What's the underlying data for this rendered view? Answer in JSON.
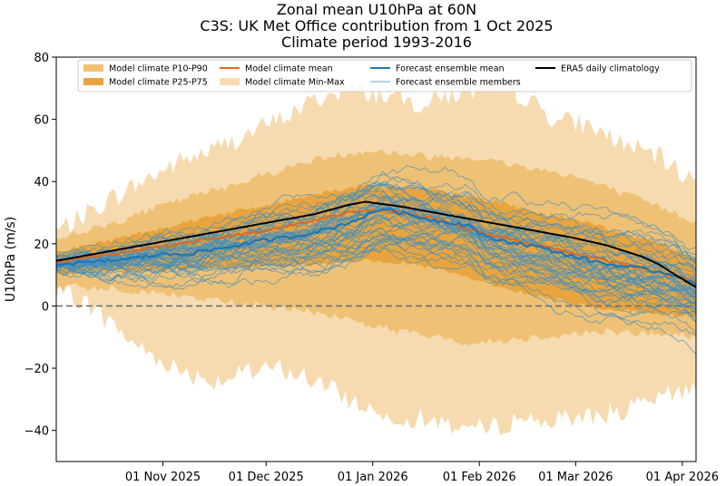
{
  "chart_data": {
    "type": "line",
    "title_lines": [
      "Zonal mean U10hPa at 60N",
      "C3S: UK Met Office contribution from 1 Oct 2025",
      "Climate period 1993-2016"
    ],
    "xlabel": "",
    "ylabel": "U10hPa (m/s)",
    "x_start_day": 0,
    "x_end_day": 186,
    "ylim": [
      -50,
      80
    ],
    "yticks": [
      -40,
      -20,
      0,
      20,
      40,
      60,
      80
    ],
    "xticks": [
      {
        "day": 31,
        "label": "01 Nov 2025"
      },
      {
        "day": 61,
        "label": "01 Dec 2025"
      },
      {
        "day": 92,
        "label": "01 Jan 2026"
      },
      {
        "day": 123,
        "label": "01 Feb 2026"
      },
      {
        "day": 151,
        "label": "01 Mar 2026"
      },
      {
        "day": 182,
        "label": "01 Apr 2026"
      }
    ],
    "zero_line": 0,
    "legend": [
      {
        "label": "Model climate P10-P90",
        "kind": "patch",
        "color": "#efc175"
      },
      {
        "label": "Model climate P25-P75",
        "kind": "patch",
        "color": "#e8a53f"
      },
      {
        "label": "Model climate mean",
        "kind": "line",
        "color": "#e0691b"
      },
      {
        "label": "Model climate Min-Max",
        "kind": "patch",
        "color": "#f6dbb0"
      },
      {
        "label": "Forecast ensemble mean",
        "kind": "line",
        "color": "#1f77b4"
      },
      {
        "label": "Forecast ensemble members",
        "kind": "thinline",
        "color": "#6aa5cc"
      },
      {
        "label": "ERA5 daily climatology",
        "kind": "line",
        "color": "#000000"
      }
    ],
    "colors": {
      "minmax": "#f6dbb0",
      "p10p90": "#efc175",
      "p25p75": "#e8a53f",
      "model_mean": "#e0691b",
      "ens_mean": "#1f77b4",
      "ens_member": "#3f8fc2",
      "era5": "#000000",
      "zero": "#707070"
    },
    "series": [
      {
        "name": "ERA5 daily climatology",
        "x": [
          0,
          15,
          30,
          45,
          60,
          75,
          85,
          90,
          100,
          110,
          120,
          130,
          140,
          150,
          160,
          170,
          175,
          180,
          186
        ],
        "y": [
          14.5,
          17.5,
          20.5,
          23.5,
          26.5,
          29.5,
          32.5,
          33.5,
          32,
          30,
          28,
          26,
          24,
          22,
          19.5,
          16,
          13.5,
          10,
          6
        ]
      },
      {
        "name": "Model climate mean",
        "x": [
          0,
          15,
          30,
          45,
          60,
          75,
          85,
          90,
          100,
          110,
          120,
          130,
          140,
          150,
          160,
          170,
          180,
          186
        ],
        "y": [
          14,
          16.5,
          19,
          21.5,
          24,
          27.5,
          30,
          31,
          30,
          28,
          24.5,
          22,
          19.5,
          17,
          14.5,
          12,
          9.5,
          7.5
        ]
      },
      {
        "name": "Forecast ensemble mean",
        "x": [
          0,
          10,
          20,
          30,
          40,
          50,
          60,
          70,
          80,
          88,
          95,
          100,
          110,
          120,
          125,
          130,
          140,
          150,
          160,
          170,
          180,
          186
        ],
        "y": [
          13.5,
          14,
          15,
          16.5,
          17,
          19,
          21,
          22.5,
          25,
          28,
          31.5,
          30,
          27.5,
          26,
          22,
          21,
          19,
          16,
          13.5,
          12,
          10,
          6.5
        ]
      },
      {
        "name": "Model climate P25-P75 lower",
        "x": [
          0,
          15,
          30,
          45,
          60,
          75,
          85,
          90,
          100,
          110,
          120,
          130,
          140,
          150,
          160,
          170,
          180,
          186
        ],
        "y": [
          10,
          11,
          11.5,
          12,
          12.5,
          13,
          14,
          15,
          14,
          12,
          9,
          6,
          3,
          1,
          -1,
          -2,
          -3,
          -3.5
        ]
      },
      {
        "name": "Model climate P25-P75 upper",
        "x": [
          0,
          15,
          30,
          45,
          60,
          75,
          85,
          90,
          100,
          110,
          120,
          130,
          140,
          150,
          160,
          170,
          180,
          186
        ],
        "y": [
          17.5,
          21,
          25,
          29,
          32,
          36,
          38,
          39,
          38,
          37,
          35,
          33,
          30,
          28,
          25,
          22,
          18,
          15
        ]
      },
      {
        "name": "Model climate P10-P90 lower",
        "x": [
          0,
          15,
          30,
          45,
          60,
          75,
          85,
          90,
          100,
          110,
          120,
          130,
          140,
          150,
          160,
          170,
          180,
          186
        ],
        "y": [
          6,
          6,
          4,
          2,
          0,
          -2,
          -4,
          -6,
          -8,
          -10,
          -12,
          -11,
          -10,
          -9,
          -8,
          -9,
          -9,
          -10
        ]
      },
      {
        "name": "Model climate P10-P90 upper",
        "x": [
          0,
          15,
          30,
          45,
          60,
          75,
          85,
          90,
          100,
          110,
          120,
          130,
          140,
          150,
          160,
          170,
          180,
          186
        ],
        "y": [
          22,
          26,
          32,
          37,
          42,
          47,
          49,
          50,
          49,
          48,
          48,
          46,
          44,
          42,
          38,
          34,
          30,
          27
        ]
      },
      {
        "name": "Model climate Min-Max lower",
        "x": [
          0,
          8,
          15,
          25,
          35,
          45,
          55,
          65,
          75,
          85,
          95,
          105,
          115,
          125,
          135,
          145,
          155,
          165,
          175,
          180,
          186
        ],
        "y": [
          4,
          2,
          -5,
          -14,
          -20,
          -24,
          -22,
          -20,
          -24,
          -30,
          -35,
          -36,
          -38,
          -40,
          -36,
          -37,
          -35,
          -34,
          -30,
          -28,
          -25
        ]
      },
      {
        "name": "Model climate Min-Max upper",
        "x": [
          0,
          8,
          15,
          25,
          35,
          45,
          55,
          65,
          75,
          85,
          95,
          105,
          115,
          125,
          135,
          145,
          155,
          165,
          175,
          180,
          186
        ],
        "y": [
          24,
          29,
          34,
          40,
          46,
          50,
          55,
          60,
          66,
          70,
          68,
          65,
          68,
          70,
          68,
          60,
          58,
          52,
          48,
          44,
          40
        ]
      }
    ],
    "ensemble_members": 50,
    "ensemble_start": 13,
    "ensemble_spread": 10,
    "legend_location": "upper center"
  }
}
